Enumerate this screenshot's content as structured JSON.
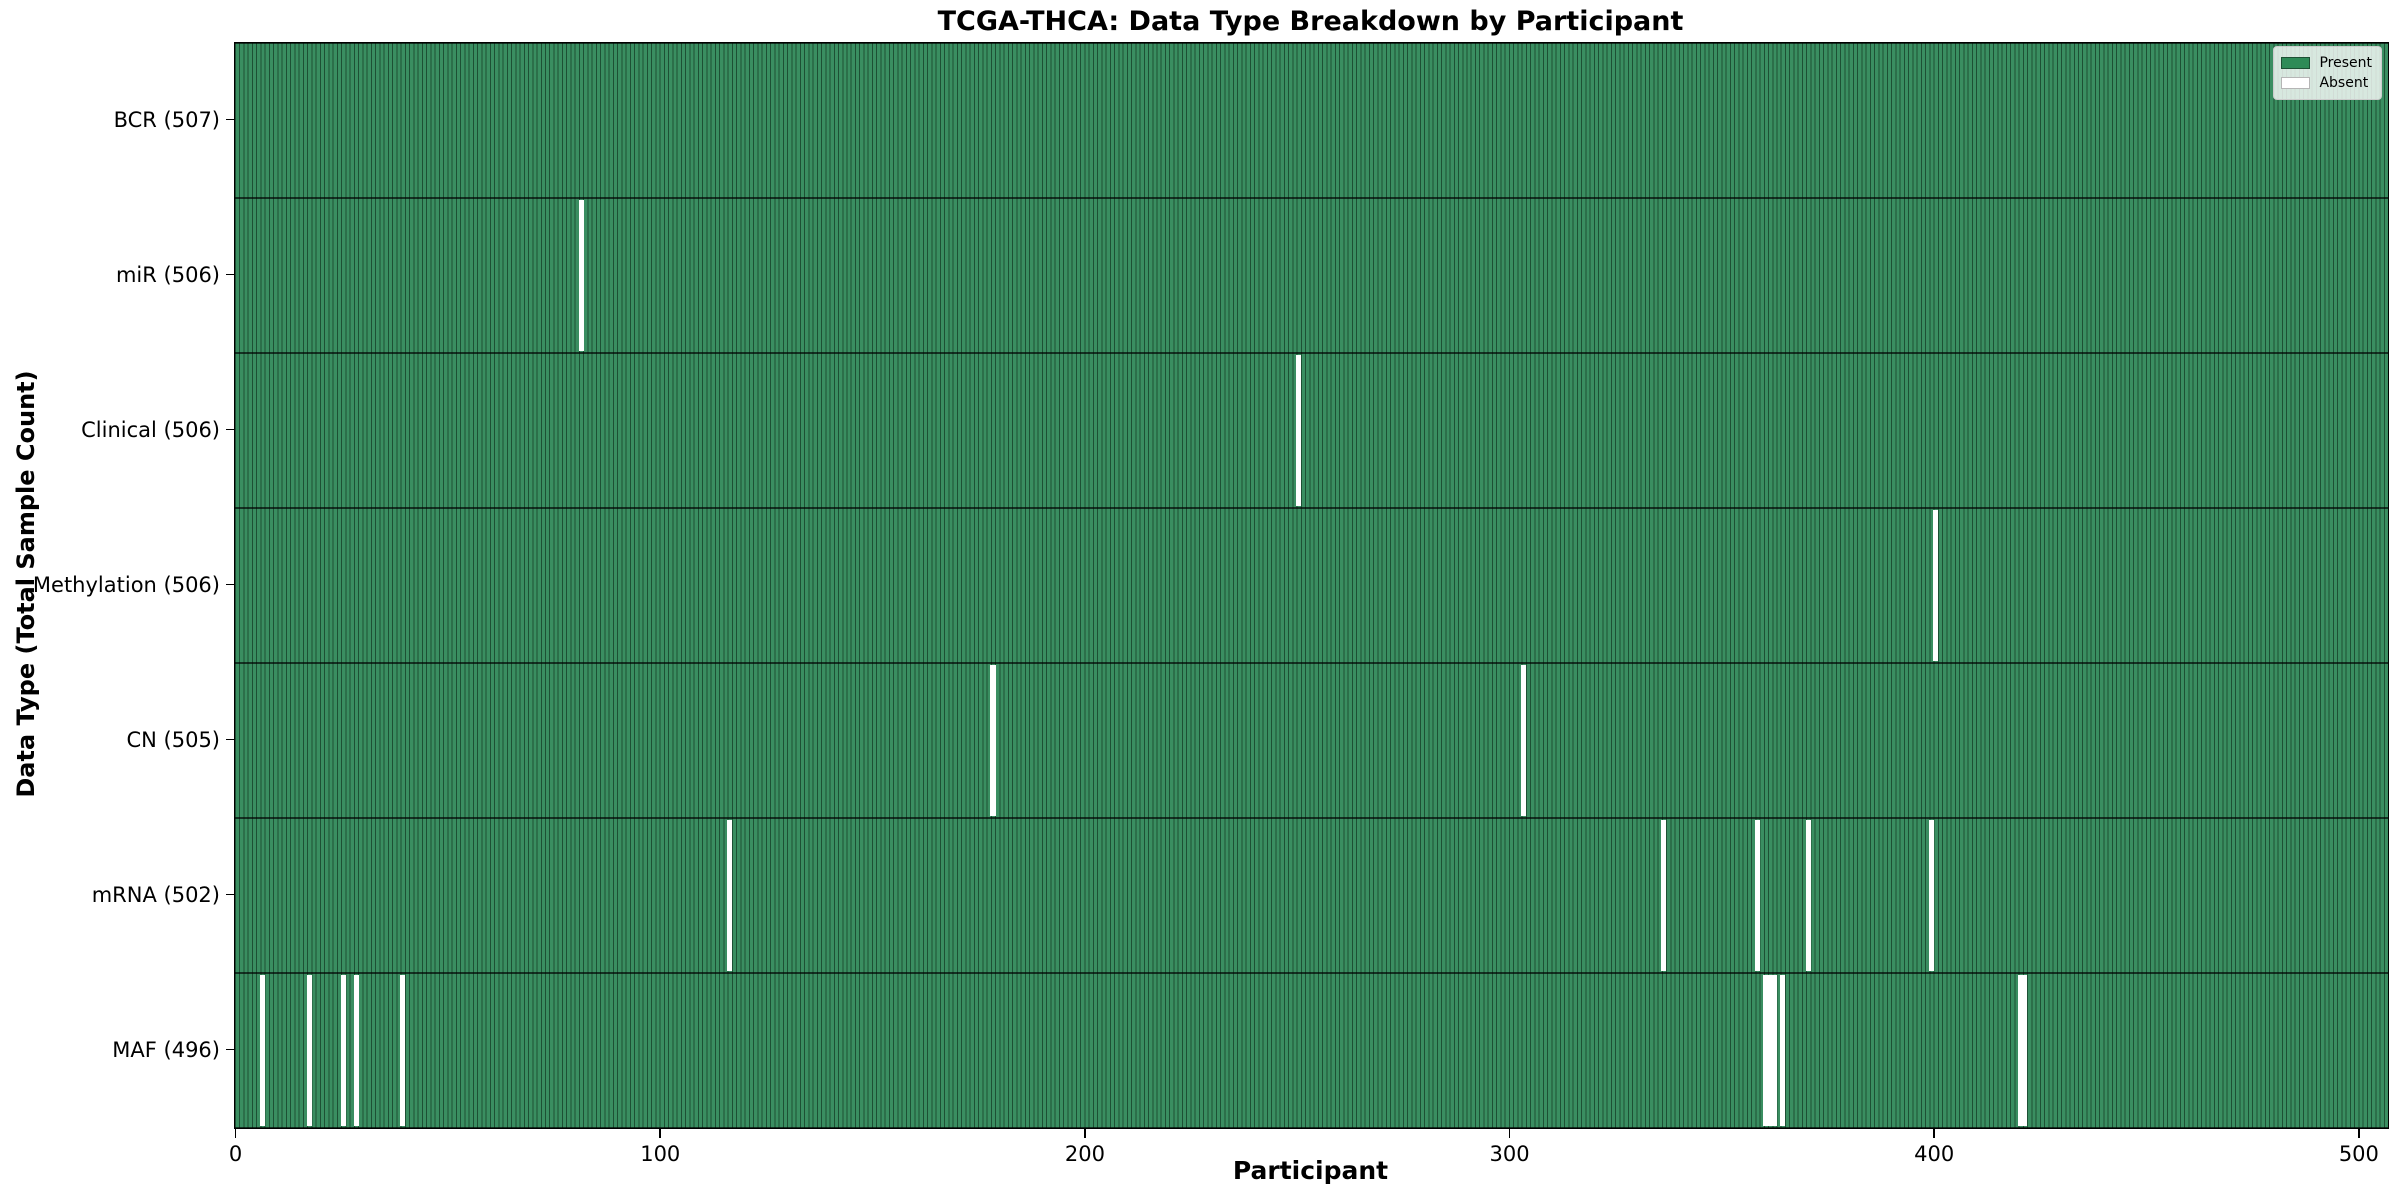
{
  "chart_data": {
    "type": "heatmap",
    "title": "TCGA-THCA: Data Type Breakdown by Participant",
    "xlabel": "Participant",
    "ylabel": "Data Type (Total Sample Count)",
    "n_participants": 507,
    "x_tick_labels": [
      "0",
      "100",
      "200",
      "300",
      "400",
      "500"
    ],
    "x_tick_values": [
      0,
      100,
      200,
      300,
      400,
      500
    ],
    "legend": {
      "position": "upper right",
      "entries": [
        {
          "label": "Present",
          "color": "#2e8b57"
        },
        {
          "label": "Absent",
          "color": "#ffffff"
        }
      ]
    },
    "rows": [
      {
        "label": "BCR (507)",
        "data_type": "BCR",
        "total_samples": 507,
        "absent_participants": []
      },
      {
        "label": "miR (506)",
        "data_type": "miR",
        "total_samples": 506,
        "absent_participants": [
          81
        ]
      },
      {
        "label": "Clinical (506)",
        "data_type": "Clinical",
        "total_samples": 506,
        "absent_participants": [
          250
        ]
      },
      {
        "label": "Methylation (506)",
        "data_type": "Methylation",
        "total_samples": 506,
        "absent_participants": [
          400
        ]
      },
      {
        "label": "CN (505)",
        "data_type": "CN",
        "total_samples": 505,
        "absent_participants": [
          178,
          303
        ]
      },
      {
        "label": "mRNA (502)",
        "data_type": "mRNA",
        "total_samples": 502,
        "absent_participants": [
          116,
          336,
          358,
          370,
          399
        ]
      },
      {
        "label": "MAF (496)",
        "data_type": "MAF",
        "total_samples": 496,
        "absent_participants": [
          6,
          17,
          25,
          28,
          39,
          360,
          361,
          362,
          364,
          420,
          421
        ]
      }
    ],
    "colors": {
      "present_fill": "#3a8e61",
      "present_legend": "#2e8b57",
      "bar_edge": "#1d5034",
      "absent": "#ffffff",
      "spine": "#000000"
    }
  }
}
